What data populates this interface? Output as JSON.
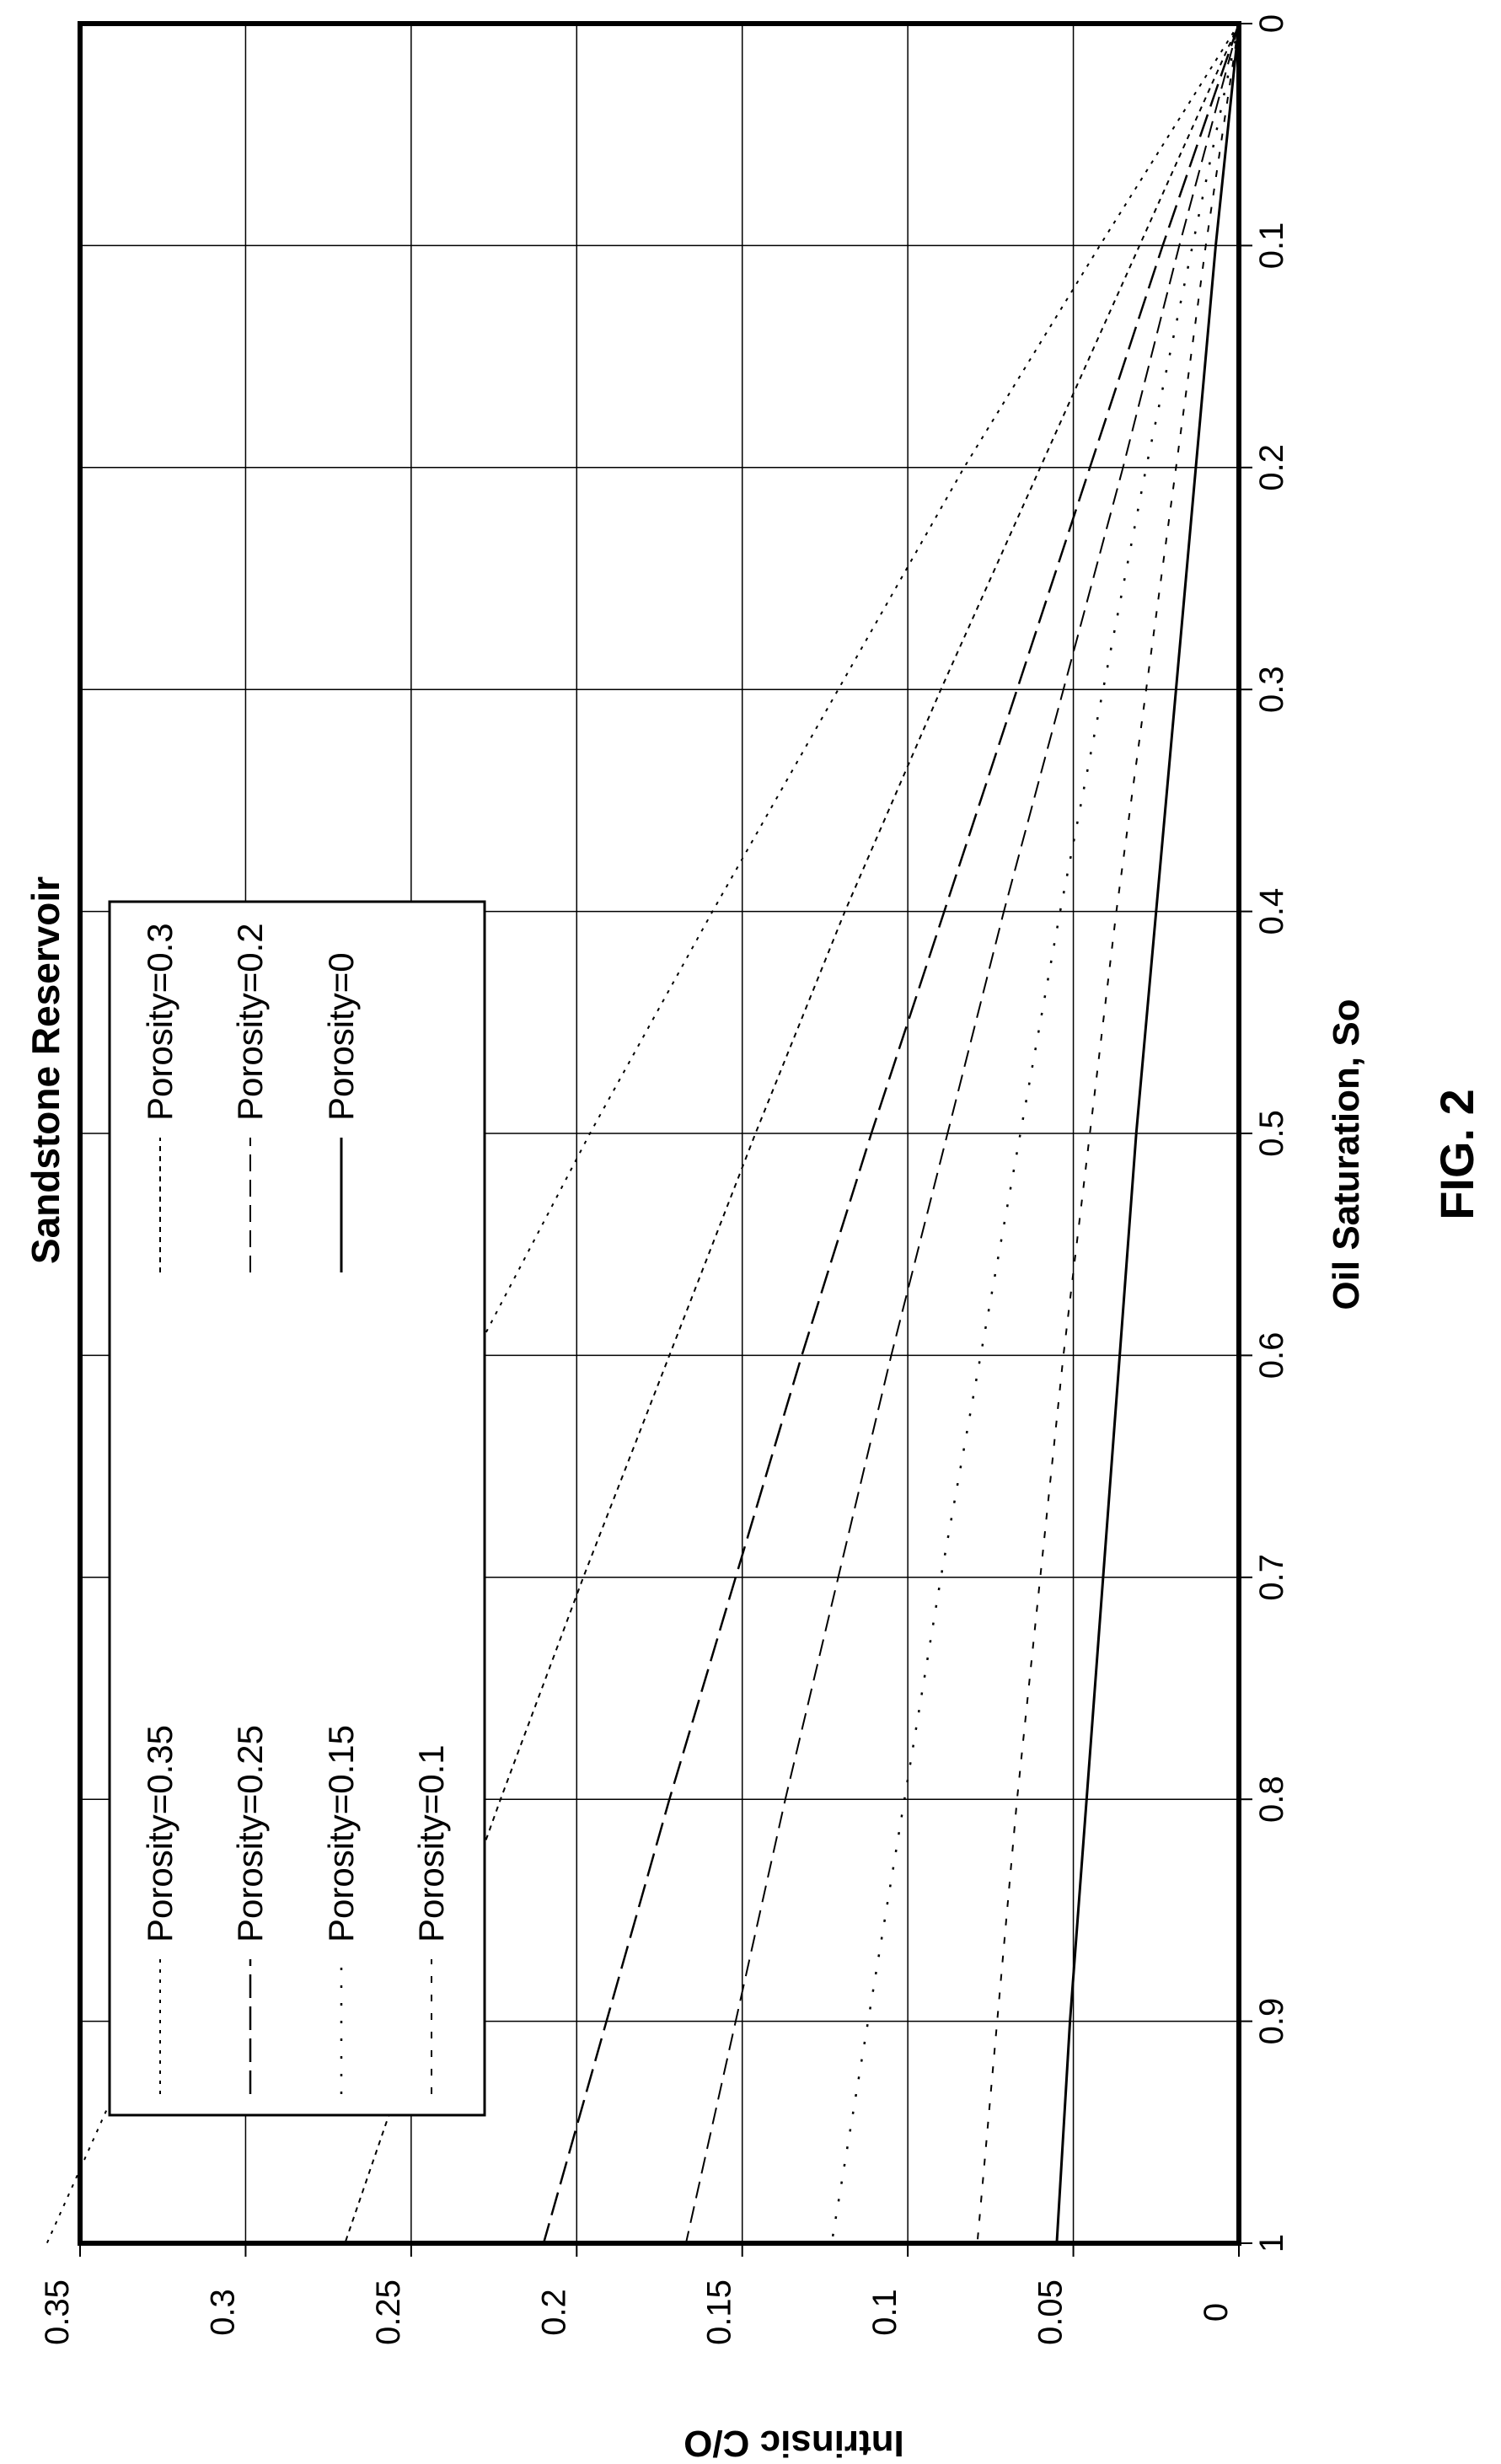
{
  "figure_label": "FIG. 2",
  "chart_data": {
    "type": "line",
    "title": "Sandstone Reservoir",
    "xlabel": "Oil Saturation, So",
    "ylabel": "Intrinsic C/O",
    "xlim": [
      0,
      1
    ],
    "ylim": [
      0,
      0.35
    ],
    "xticks": [
      "0",
      "0.1",
      "0.2",
      "0.3",
      "0.4",
      "0.5",
      "0.6",
      "0.7",
      "0.8",
      "0.9",
      "1"
    ],
    "yticks": [
      "0",
      "0.05",
      "0.1",
      "0.15",
      "0.2",
      "0.25",
      "0.3",
      "0.35"
    ],
    "grid": true,
    "legend_position": "top-left",
    "x": [
      0,
      0.1,
      0.2,
      0.3,
      0.4,
      0.5,
      0.6,
      0.7,
      0.8,
      0.9,
      1.0
    ],
    "series": [
      {
        "name": "Porosity=0.35",
        "values": [
          0,
          0.042,
          0.083,
          0.121,
          0.159,
          0.196,
          0.231,
          0.265,
          0.298,
          0.33,
          0.36
        ]
      },
      {
        "name": "Porosity=0.3",
        "values": [
          0,
          0.03,
          0.06,
          0.09,
          0.119,
          0.146,
          0.172,
          0.198,
          0.223,
          0.247,
          0.27
        ]
      },
      {
        "name": "Porosity=0.25",
        "values": [
          0,
          0.023,
          0.045,
          0.067,
          0.089,
          0.111,
          0.132,
          0.152,
          0.172,
          0.191,
          0.21
        ]
      },
      {
        "name": "Porosity=0.2",
        "values": [
          0,
          0.018,
          0.035,
          0.053,
          0.071,
          0.088,
          0.105,
          0.121,
          0.137,
          0.152,
          0.167
        ]
      },
      {
        "name": "Porosity=0.15",
        "values": [
          0,
          0.014,
          0.028,
          0.041,
          0.054,
          0.066,
          0.078,
          0.09,
          0.101,
          0.112,
          0.123
        ]
      },
      {
        "name": "Porosity=0.1",
        "values": [
          0,
          0.01,
          0.019,
          0.028,
          0.037,
          0.045,
          0.053,
          0.06,
          0.067,
          0.073,
          0.079
        ]
      },
      {
        "name": "Porosity=0",
        "values": [
          0,
          0.007,
          0.013,
          0.019,
          0.025,
          0.031,
          0.036,
          0.041,
          0.046,
          0.051,
          0.055
        ]
      }
    ],
    "series_styles": [
      {
        "dash": "4 8",
        "width": 2
      },
      {
        "dash": "6 6",
        "width": 2
      },
      {
        "dash": "28 10",
        "width": 2.5
      },
      {
        "dash": "20 10",
        "width": 2
      },
      {
        "dash": "3 18",
        "width": 2.5
      },
      {
        "dash": "8 14",
        "width": 2
      },
      {
        "dash": "",
        "width": 3
      }
    ],
    "legend_order": [
      0,
      1,
      2,
      3,
      4,
      6,
      5
    ]
  }
}
